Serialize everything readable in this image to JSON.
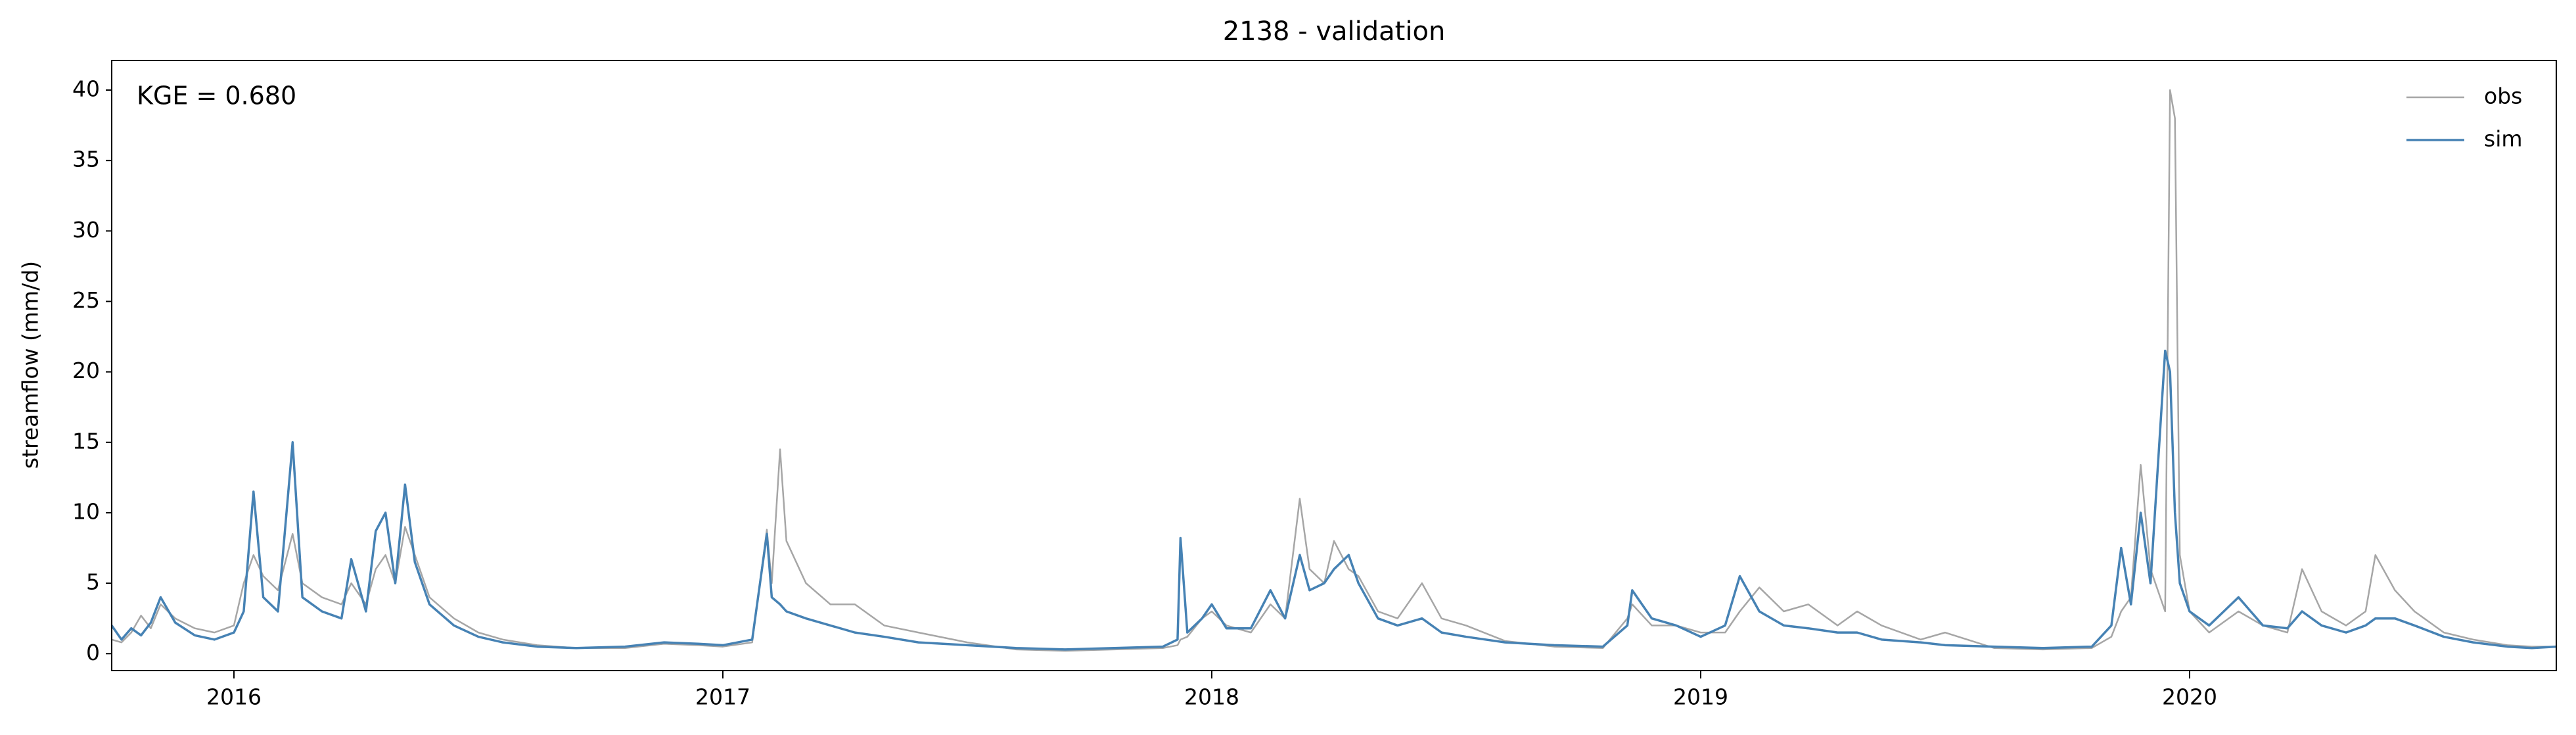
{
  "chart_data": {
    "type": "line",
    "title": "2138 - validation",
    "ylabel": "streamflow (mm/d)",
    "annotation": "KGE = 0.680",
    "legend": "upper right",
    "xlim": [
      2015.75,
      2020.75
    ],
    "xticks": [
      2016,
      2017,
      2018,
      2019,
      2020
    ],
    "ylim": [
      -1.2,
      42.1
    ],
    "yticks": [
      0,
      5,
      10,
      15,
      20,
      25,
      30,
      35,
      40
    ],
    "x": [
      2015.75,
      2015.77,
      2015.79,
      2015.81,
      2015.83,
      2015.85,
      2015.88,
      2015.92,
      2015.96,
      2016.0,
      2016.02,
      2016.04,
      2016.06,
      2016.09,
      2016.12,
      2016.14,
      2016.18,
      2016.22,
      2016.24,
      2016.27,
      2016.29,
      2016.31,
      2016.33,
      2016.35,
      2016.37,
      2016.4,
      2016.45,
      2016.5,
      2016.55,
      2016.62,
      2016.7,
      2016.8,
      2016.88,
      2016.95,
      2017.0,
      2017.06,
      2017.09,
      2017.1,
      2017.117,
      2017.13,
      2017.17,
      2017.22,
      2017.27,
      2017.33,
      2017.4,
      2017.5,
      2017.6,
      2017.7,
      2017.8,
      2017.9,
      2017.93,
      2017.936,
      2017.95,
      2017.98,
      2018.0,
      2018.03,
      2018.08,
      2018.12,
      2018.15,
      2018.18,
      2018.2,
      2018.23,
      2018.25,
      2018.28,
      2018.3,
      2018.34,
      2018.38,
      2018.43,
      2018.47,
      2018.52,
      2018.6,
      2018.7,
      2018.8,
      2018.85,
      2018.86,
      2018.9,
      2018.95,
      2019.0,
      2019.05,
      2019.08,
      2019.12,
      2019.17,
      2019.22,
      2019.28,
      2019.32,
      2019.37,
      2019.45,
      2019.5,
      2019.6,
      2019.7,
      2019.8,
      2019.84,
      2019.86,
      2019.88,
      2019.9,
      2019.92,
      2019.95,
      2019.96,
      2019.97,
      2019.98,
      2020.0,
      2020.04,
      2020.1,
      2020.15,
      2020.2,
      2020.23,
      2020.27,
      2020.32,
      2020.36,
      2020.38,
      2020.42,
      2020.46,
      2020.52,
      2020.58,
      2020.65,
      2020.7,
      2020.75
    ],
    "series": [
      {
        "name": "obs",
        "color": "#a6a6a6",
        "values": [
          1.0,
          0.8,
          1.5,
          2.7,
          1.8,
          3.5,
          2.5,
          1.8,
          1.5,
          2.0,
          5.0,
          7.0,
          5.5,
          4.5,
          8.5,
          5.0,
          4.0,
          3.5,
          5.0,
          3.5,
          6.0,
          7.0,
          5.0,
          9.0,
          7.0,
          4.0,
          2.5,
          1.5,
          1.0,
          0.6,
          0.4,
          0.4,
          0.7,
          0.6,
          0.5,
          0.8,
          8.8,
          5.0,
          14.5,
          8.0,
          5.0,
          3.5,
          3.5,
          2.0,
          1.5,
          0.8,
          0.3,
          0.2,
          0.3,
          0.4,
          0.6,
          1.0,
          1.2,
          2.5,
          3.0,
          2.0,
          1.5,
          3.5,
          2.5,
          11.0,
          6.0,
          5.0,
          8.0,
          6.0,
          5.5,
          3.0,
          2.5,
          5.0,
          2.5,
          2.0,
          0.9,
          0.5,
          0.4,
          2.5,
          3.5,
          2.0,
          2.0,
          1.5,
          1.5,
          3.0,
          4.7,
          3.0,
          3.5,
          2.0,
          3.0,
          2.0,
          1.0,
          1.5,
          0.4,
          0.3,
          0.4,
          1.2,
          3.0,
          4.0,
          13.4,
          6.0,
          3.0,
          40.0,
          38.0,
          7.0,
          3.0,
          1.5,
          3.0,
          2.0,
          1.5,
          6.0,
          3.0,
          2.0,
          3.0,
          7.0,
          4.5,
          3.0,
          1.5,
          1.0,
          0.6,
          0.5,
          0.5
        ]
      },
      {
        "name": "sim",
        "color": "#4682b4",
        "values": [
          2.0,
          1.0,
          1.8,
          1.3,
          2.2,
          4.0,
          2.2,
          1.3,
          1.0,
          1.5,
          3.0,
          11.5,
          4.0,
          3.0,
          15.0,
          4.0,
          3.0,
          2.5,
          6.7,
          3.0,
          8.7,
          10.0,
          5.0,
          12.0,
          6.5,
          3.5,
          2.0,
          1.2,
          0.8,
          0.5,
          0.4,
          0.5,
          0.8,
          0.7,
          0.6,
          1.0,
          8.5,
          4.0,
          3.5,
          3.0,
          2.5,
          2.0,
          1.5,
          1.2,
          0.8,
          0.6,
          0.4,
          0.3,
          0.4,
          0.5,
          1.0,
          8.2,
          1.5,
          2.5,
          3.5,
          1.8,
          1.8,
          4.5,
          2.5,
          7.0,
          4.5,
          5.0,
          6.0,
          7.0,
          5.0,
          2.5,
          2.0,
          2.5,
          1.5,
          1.2,
          0.8,
          0.6,
          0.5,
          2.0,
          4.5,
          2.5,
          2.0,
          1.2,
          2.0,
          5.5,
          3.0,
          2.0,
          1.8,
          1.5,
          1.5,
          1.0,
          0.8,
          0.6,
          0.5,
          0.4,
          0.5,
          2.0,
          7.5,
          3.5,
          10.0,
          5.0,
          21.5,
          20.0,
          10.0,
          5.0,
          3.0,
          2.0,
          4.0,
          2.0,
          1.8,
          3.0,
          2.0,
          1.5,
          2.0,
          2.5,
          2.5,
          2.0,
          1.2,
          0.8,
          0.5,
          0.4,
          0.5
        ]
      }
    ]
  }
}
